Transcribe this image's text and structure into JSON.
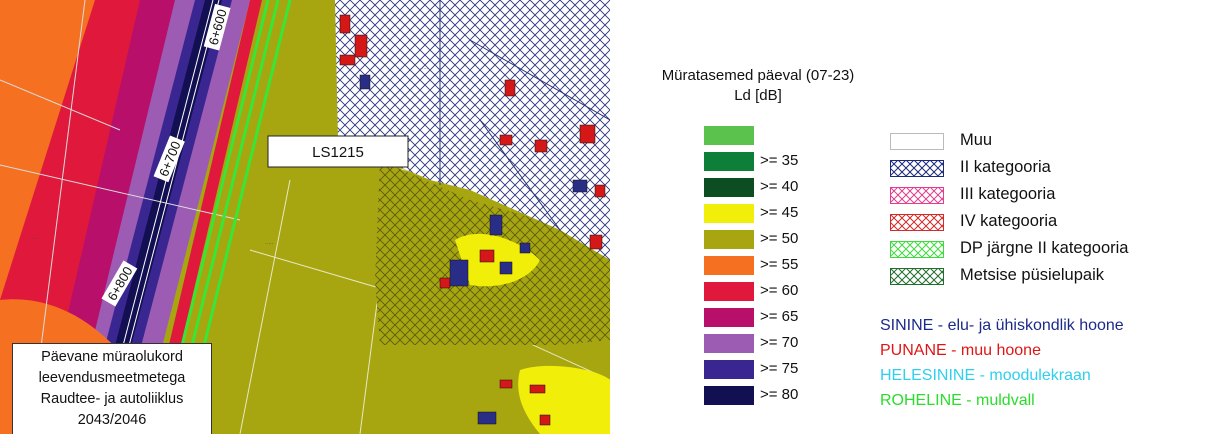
{
  "map": {
    "building_label": "LS1215",
    "chainage_markers": [
      "6+600",
      "6+700",
      "6+800"
    ],
    "title_lines": [
      "Päevane müraolukord",
      "leevendusmeetmetega",
      "Raudtee- ja autoliiklus",
      "2043/2046"
    ]
  },
  "legend": {
    "title_line1": "Müratasemed päeval (07-23)",
    "title_line2": "Ld [dB]",
    "levels": [
      {
        "label": "",
        "color": "#5cc24e"
      },
      {
        "label": ">= 35",
        "color": "#0e7f38"
      },
      {
        "label": ">= 40",
        "color": "#0d4d22"
      },
      {
        "label": ">= 45",
        "color": "#f1ee0a"
      },
      {
        "label": ">= 50",
        "color": "#a7a611"
      },
      {
        "label": ">= 55",
        "color": "#f57021"
      },
      {
        "label": ">= 60",
        "color": "#e0183c"
      },
      {
        "label": ">= 65",
        "color": "#b80f6a"
      },
      {
        "label": ">= 70",
        "color": "#9c5cb4"
      },
      {
        "label": ">= 75",
        "color": "#3a2691"
      },
      {
        "label": ">= 80",
        "color": "#121052"
      }
    ],
    "categories": [
      {
        "label": "Muu",
        "hatch_color": "",
        "fill": "#ffffff"
      },
      {
        "label": "II kategooria",
        "hatch_color": "#1b2a78"
      },
      {
        "label": "III kategooria",
        "hatch_color": "#e23d8f"
      },
      {
        "label": "IV kategooria",
        "hatch_color": "#d42a2a"
      },
      {
        "label": "DP järgne II kategooria",
        "hatch_color": "#3ddc3d"
      },
      {
        "label": "Metsise püsielupaik",
        "hatch_color": "#1f6e2a"
      }
    ],
    "color_key": [
      {
        "text": "SININE - elu- ja ühiskondlik hoone",
        "color": "#1c2a8a"
      },
      {
        "text": "PUNANE - muu hoone",
        "color": "#e01515"
      },
      {
        "text": "HELESININE - moodulekraan",
        "color": "#2fd0ee"
      },
      {
        "text": "ROHELINE - muldvall",
        "color": "#2cdc2c"
      }
    ]
  }
}
